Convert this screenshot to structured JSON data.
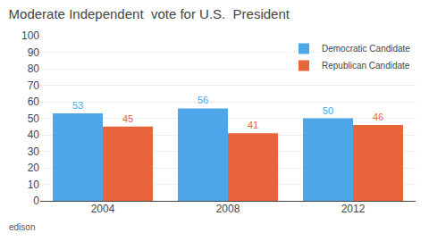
{
  "chart_data": {
    "type": "bar",
    "title": "Moderate Independent  vote for U.S.  President",
    "categories": [
      "2004",
      "2008",
      "2012"
    ],
    "series": [
      {
        "name": "Democratic Candidate",
        "color": "#4da6e8",
        "values": [
          53,
          56,
          50
        ]
      },
      {
        "name": "Republican Candidate",
        "color": "#e8643a",
        "values": [
          45,
          41,
          46
        ]
      }
    ],
    "ylim": [
      0,
      100
    ],
    "yticks": [
      0,
      10,
      20,
      30,
      40,
      50,
      60,
      70,
      80,
      90,
      100
    ],
    "grid": true,
    "legend": "upper right",
    "data_labels": true,
    "annotations": [
      {
        "text": "edison"
      }
    ]
  }
}
